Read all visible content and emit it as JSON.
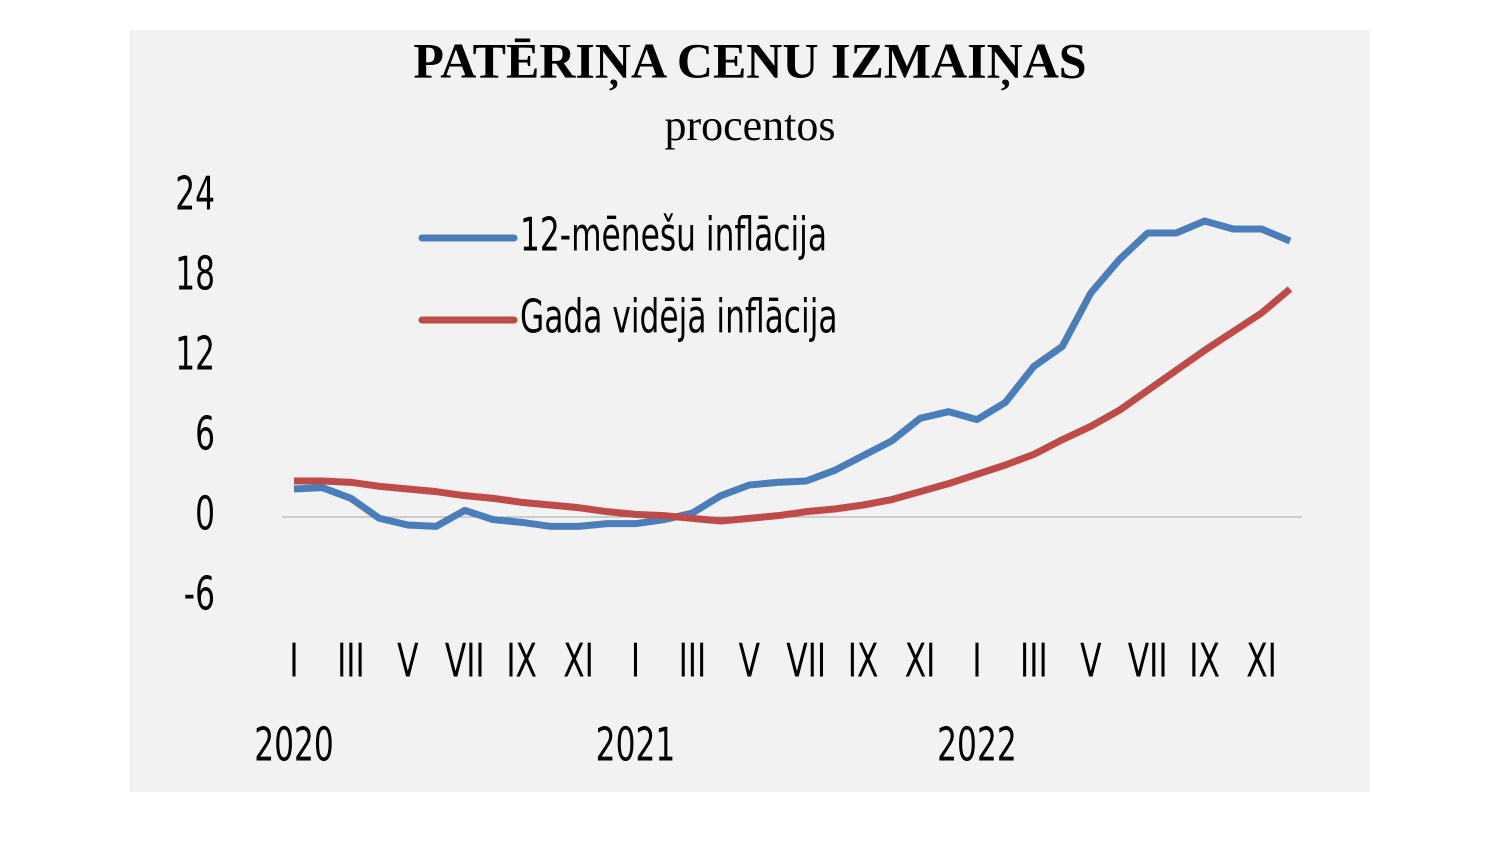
{
  "chart_data": {
    "type": "line",
    "title": "PATĒRIŅA CENU IZMAIŅAS",
    "subtitle": "procentos",
    "categories": [
      "I",
      null,
      "III",
      null,
      "V",
      null,
      "VII",
      null,
      "IX",
      null,
      "XI",
      null,
      "I",
      null,
      "III",
      null,
      "V",
      null,
      "VII",
      null,
      "IX",
      null,
      "XI",
      null,
      "I",
      null,
      "III",
      null,
      "V",
      null,
      "VII",
      null,
      "IX",
      null,
      "XI",
      null
    ],
    "years": [
      "2020",
      null,
      null,
      null,
      null,
      null,
      null,
      null,
      null,
      null,
      null,
      null,
      "2021",
      null,
      null,
      null,
      null,
      null,
      null,
      null,
      null,
      null,
      null,
      null,
      "2022",
      null,
      null,
      null,
      null,
      null,
      null,
      null,
      null,
      null,
      null,
      null
    ],
    "series": [
      {
        "name": "12-mēnešu inflācija",
        "color": "#4a7ebb",
        "values": [
          2.1,
          2.2,
          1.4,
          -0.1,
          -0.6,
          -0.7,
          0.5,
          -0.2,
          -0.4,
          -0.7,
          -0.7,
          -0.5,
          -0.5,
          -0.2,
          0.3,
          1.6,
          2.4,
          2.6,
          2.7,
          3.5,
          4.6,
          5.7,
          7.4,
          7.9,
          7.3,
          8.6,
          11.3,
          12.8,
          16.8,
          19.3,
          21.3,
          21.3,
          22.2,
          21.6,
          21.6,
          20.7
        ]
      },
      {
        "name": "Gada vidējā inflācija",
        "color": "#be4b48",
        "values": [
          2.7,
          2.7,
          2.6,
          2.3,
          2.1,
          1.9,
          1.6,
          1.4,
          1.1,
          0.9,
          0.7,
          0.4,
          0.2,
          0.1,
          -0.1,
          -0.3,
          -0.1,
          0.1,
          0.4,
          0.6,
          0.9,
          1.3,
          1.9,
          2.5,
          3.2,
          3.9,
          4.7,
          5.8,
          6.8,
          8.0,
          9.5,
          11.0,
          12.5,
          13.9,
          15.3,
          17.1
        ]
      }
    ],
    "ylim": [
      -6,
      24
    ],
    "yticks": [
      -6,
      0,
      6,
      12,
      18,
      24
    ],
    "zero_line": true,
    "grid": false,
    "legend": "top-left"
  }
}
